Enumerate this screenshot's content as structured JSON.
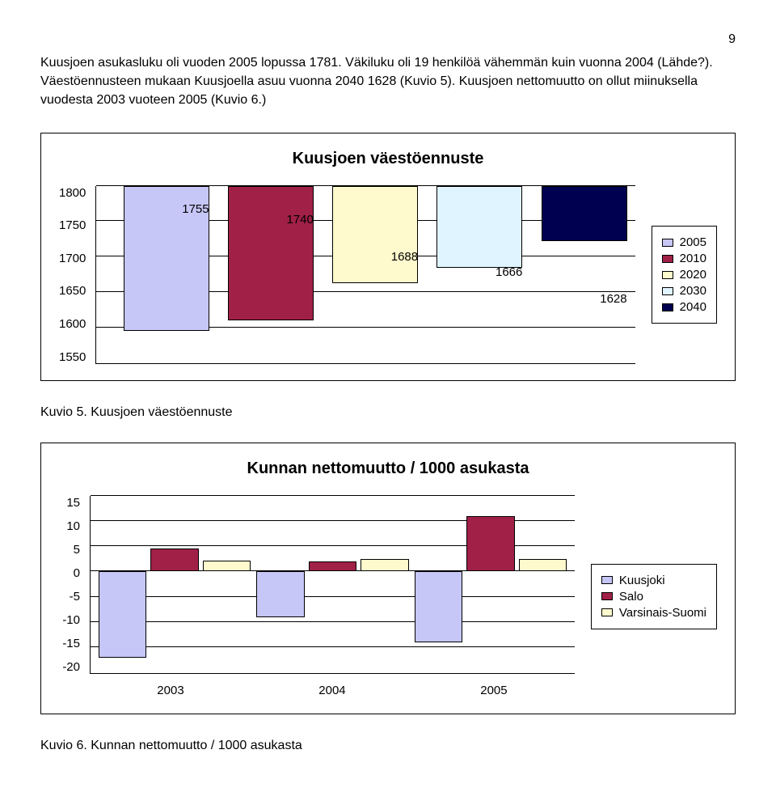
{
  "page_number": "9",
  "paragraph": "Kuusjoen asukasluku oli vuoden 2005 lopussa 1781. Väkiluku oli 19 henkilöä vähemmän kuin vuonna 2004 (Lähde?). Väestöennusteen mukaan Kuusjoella asuu vuonna 2040 1628 (Kuvio 5). Kuusjoen nettomuutto on ollut miinuksella vuodesta 2003 vuoteen 2005 (Kuvio 6.)",
  "chart1": {
    "title": "Kuusjoen väestöennuste",
    "ylim": [
      1550,
      1800
    ],
    "ytick_step": 50,
    "yticks": [
      "1800",
      "1750",
      "1700",
      "1650",
      "1600",
      "1550"
    ],
    "values": [
      1755,
      1740,
      1688,
      1666,
      1628
    ],
    "labels": [
      "1755",
      "1740",
      "1688",
      "1666",
      "1628"
    ],
    "colors": [
      "#c6c6f7",
      "#a02048",
      "#fffacd",
      "#e0f4ff",
      "#000050"
    ],
    "legend": [
      "2005",
      "2010",
      "2020",
      "2030",
      "2040"
    ]
  },
  "caption1": "Kuvio 5. Kuusjoen väestöennuste",
  "chart2": {
    "title": "Kunnan nettomuutto / 1000 asukasta",
    "ylim": [
      -20,
      15
    ],
    "ytick_step": 5,
    "yticks": [
      "15",
      "10",
      "5",
      "0",
      "-5",
      "-10",
      "-15",
      "-20"
    ],
    "categories": [
      "2003",
      "2004",
      "2005"
    ],
    "series": [
      {
        "name": "Kuusjoki",
        "color": "#c6c6f7",
        "values": [
          -17,
          -9,
          -14
        ]
      },
      {
        "name": "Salo",
        "color": "#a02048",
        "values": [
          4.5,
          2,
          11
        ]
      },
      {
        "name": "Varsinais-Suomi",
        "color": "#fffacd",
        "values": [
          2.2,
          2.4,
          2.5
        ]
      }
    ],
    "legend": [
      "Kuusjoki",
      "Salo",
      "Varsinais-Suomi"
    ]
  },
  "caption2": "Kuvio 6. Kunnan nettomuutto / 1000 asukasta"
}
